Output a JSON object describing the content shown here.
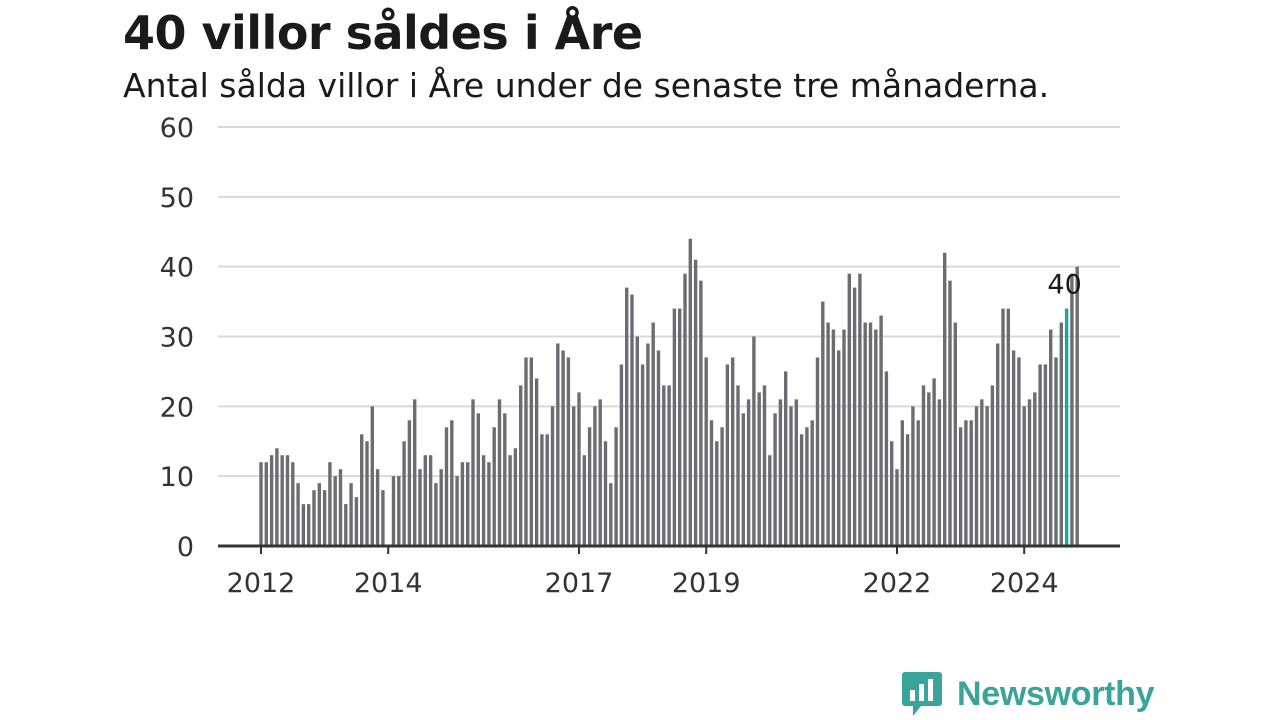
{
  "header": {
    "title": "40 villor såldes i Åre",
    "subtitle": "Antal sålda villor i Åre under de senaste tre månaderna."
  },
  "brand": {
    "name": "Newsworthy",
    "icon": "bar-chart-speech-bubble-icon",
    "color": "#3aa39a"
  },
  "colors": {
    "bar": "#6d6c73",
    "highlight": "#17a89a",
    "grid": "#d9d9d9",
    "axis": "#333333"
  },
  "chart_data": {
    "type": "bar",
    "title": "40 villor såldes i Åre",
    "subtitle": "Antal sålda villor i Åre under de senaste tre månaderna.",
    "xlabel": "",
    "ylabel": "",
    "ylim": [
      0,
      60
    ],
    "yticks": [
      0,
      10,
      20,
      30,
      40,
      50,
      60
    ],
    "grid": true,
    "x_start": "2012-01",
    "x_end": "2024-09",
    "xtick_labels": [
      {
        "label": "2012",
        "index": 0
      },
      {
        "label": "2014",
        "index": 24
      },
      {
        "label": "2017",
        "index": 60
      },
      {
        "label": "2019",
        "index": 84
      },
      {
        "label": "2022",
        "index": 120
      },
      {
        "label": "2024",
        "index": 144
      }
    ],
    "values": [
      12,
      12,
      13,
      14,
      13,
      13,
      12,
      9,
      6,
      6,
      8,
      9,
      8,
      12,
      10,
      11,
      6,
      9,
      7,
      16,
      15,
      20,
      11,
      8,
      0,
      10,
      10,
      15,
      18,
      21,
      11,
      13,
      13,
      9,
      11,
      17,
      18,
      10,
      12,
      12,
      21,
      19,
      13,
      12,
      17,
      21,
      19,
      13,
      14,
      23,
      27,
      27,
      24,
      16,
      16,
      20,
      29,
      28,
      27,
      20,
      22,
      13,
      17,
      20,
      21,
      15,
      9,
      17,
      26,
      37,
      36,
      30,
      26,
      29,
      32,
      28,
      23,
      23,
      34,
      34,
      39,
      44,
      41,
      38,
      27,
      18,
      15,
      17,
      26,
      27,
      23,
      19,
      21,
      30,
      22,
      23,
      13,
      19,
      21,
      25,
      20,
      21,
      16,
      17,
      18,
      27,
      35,
      32,
      31,
      28,
      31,
      39,
      37,
      39,
      32,
      32,
      31,
      33,
      25,
      15,
      11,
      18,
      16,
      20,
      18,
      23,
      22,
      24,
      21,
      42,
      38,
      32,
      17,
      18,
      18,
      20,
      21,
      20,
      23,
      29,
      34,
      34,
      28,
      27,
      20,
      21,
      22,
      26,
      26,
      31,
      27,
      32,
      34,
      39,
      40
    ],
    "highlight_index": 152,
    "highlight_label": "40"
  }
}
